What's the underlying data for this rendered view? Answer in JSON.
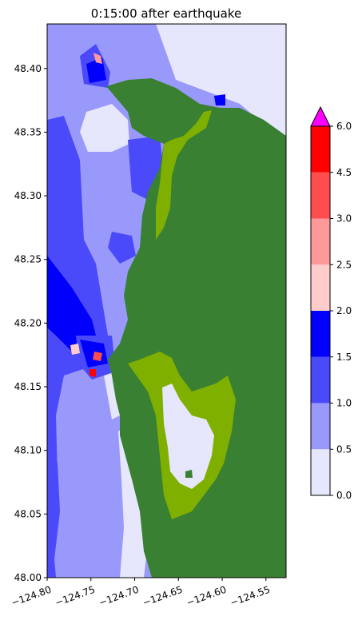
{
  "title": "0:15:00 after earthquake",
  "map": {
    "x_ticks": [
      "−124.80",
      "−124.75",
      "−124.70",
      "−124.65",
      "−124.60",
      "−124.55"
    ],
    "y_ticks": [
      "48.40",
      "48.35",
      "48.30",
      "48.25",
      "48.20",
      "48.15",
      "48.10",
      "48.05",
      "48.00"
    ],
    "x_tick_values": [
      -124.8,
      -124.75,
      -124.7,
      -124.65,
      -124.6,
      -124.55
    ],
    "y_tick_values": [
      48.4,
      48.35,
      48.3,
      48.25,
      48.2,
      48.15,
      48.1,
      48.05,
      48.0
    ],
    "xlim": [
      -124.8,
      -124.527
    ],
    "ylim": [
      48.0,
      48.435
    ],
    "land_color": "#3a8032",
    "inundated_land_color": "#7fb000"
  },
  "colorbar": {
    "ticks": [
      "0.0",
      "0.5",
      "1.0",
      "1.5",
      "2.0",
      "2.5",
      "3.0",
      "4.5",
      "6.0"
    ],
    "levels": [
      0.0,
      0.5,
      1.0,
      1.5,
      2.0,
      2.5,
      3.0,
      4.5,
      6.0
    ],
    "colors": [
      "#e6e6fc",
      "#9999fb",
      "#4a4afa",
      "#0000fb",
      "#ffcccc",
      "#ff9999",
      "#ff4d4d",
      "#ff0000"
    ],
    "extend_color": "#ff00ff"
  }
}
